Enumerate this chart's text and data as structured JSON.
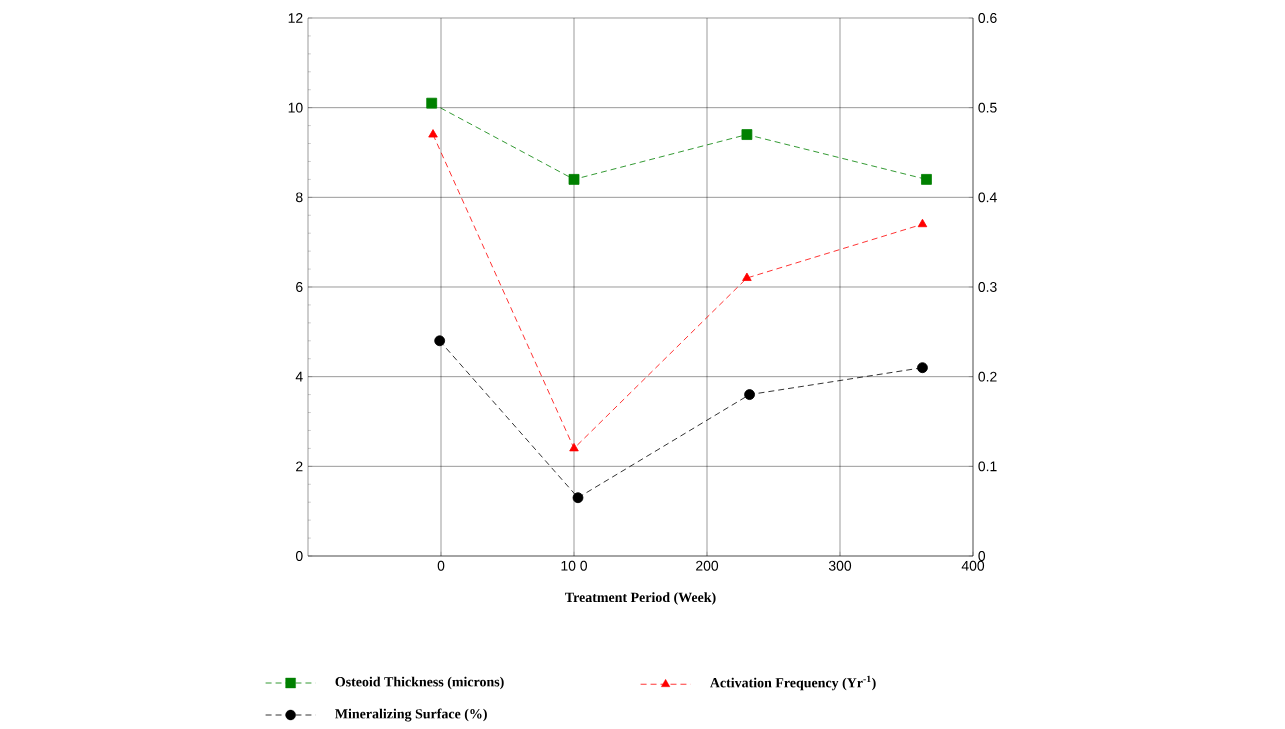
{
  "chart_data": {
    "type": "line",
    "xlabel": "Treatment Period (Week)",
    "xlim": [
      -100,
      400
    ],
    "xticks": [
      0,
      {
        "value": 100,
        "label": "10 0"
      },
      200,
      300,
      400
    ],
    "ylim": [
      0,
      12
    ],
    "yticks": [
      0,
      2,
      4,
      6,
      8,
      10,
      12
    ],
    "y2lim": [
      0,
      0.6
    ],
    "y2ticks": [
      0,
      0.1,
      0.2,
      0.3,
      0.4,
      0.5,
      0.6
    ],
    "grid": true,
    "legend": "bottom",
    "series": [
      {
        "name": "Osteoid Thickness (microns)",
        "color": "#008000",
        "marker": "square",
        "line_style": "dashed",
        "x": [
          -7,
          100,
          230,
          365
        ],
        "values": [
          10.1,
          8.4,
          9.4,
          8.4
        ]
      },
      {
        "name": "Mineralizing Surface (%)",
        "color": "#000000",
        "marker": "circle",
        "line_style": "dashed",
        "x": [
          -1,
          103,
          232,
          362
        ],
        "values": [
          4.8,
          1.3,
          3.6,
          4.2
        ]
      },
      {
        "name": "Activation Frequency (Yr$^{-1}$)",
        "color": "#ff0000",
        "marker": "triangle",
        "line_style": "dashed",
        "axis": "y2",
        "x": [
          -6,
          100,
          230,
          362
        ],
        "values": [
          0.47,
          0.12,
          0.31,
          0.37
        ]
      }
    ]
  }
}
